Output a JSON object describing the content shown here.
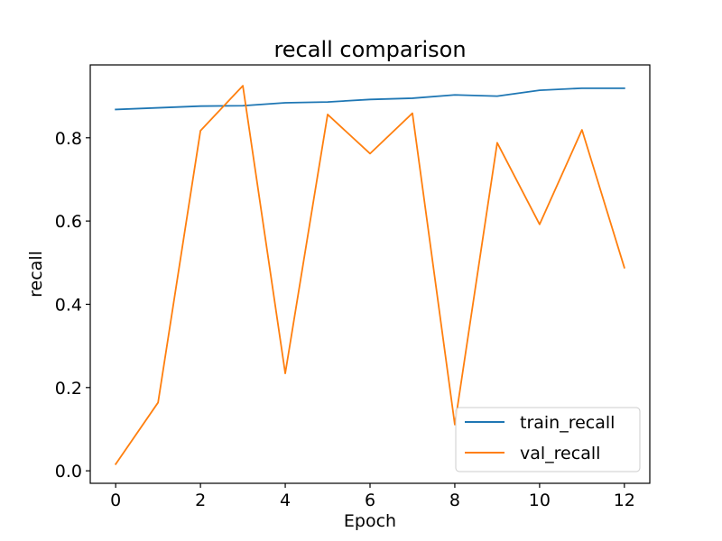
{
  "chart_data": {
    "type": "line",
    "title": "recall comparison",
    "xlabel": "Epoch",
    "ylabel": "recall",
    "xlim": [
      -0.6,
      12.6
    ],
    "ylim": [
      -0.03,
      0.975
    ],
    "x_ticks": [
      0,
      2,
      4,
      6,
      8,
      10,
      12
    ],
    "y_ticks": [
      0.0,
      0.2,
      0.4,
      0.6,
      0.8
    ],
    "x_tick_labels": [
      "0",
      "2",
      "4",
      "6",
      "8",
      "10",
      "12"
    ],
    "y_tick_labels": [
      "0.0",
      "0.2",
      "0.4",
      "0.6",
      "0.8"
    ],
    "grid": false,
    "legend_position": "bottom-right",
    "x": [
      0,
      1,
      2,
      3,
      4,
      5,
      6,
      7,
      8,
      9,
      10,
      11,
      12
    ],
    "series": [
      {
        "name": "train_recall",
        "color": "#1f77b4",
        "values": [
          0.868,
          0.872,
          0.876,
          0.877,
          0.884,
          0.886,
          0.892,
          0.895,
          0.903,
          0.9,
          0.914,
          0.919,
          0.919
        ]
      },
      {
        "name": "val_recall",
        "color": "#ff7f0e",
        "values": [
          0.016,
          0.164,
          0.817,
          0.925,
          0.234,
          0.856,
          0.762,
          0.859,
          0.111,
          0.788,
          0.592,
          0.819,
          0.488
        ]
      }
    ]
  }
}
